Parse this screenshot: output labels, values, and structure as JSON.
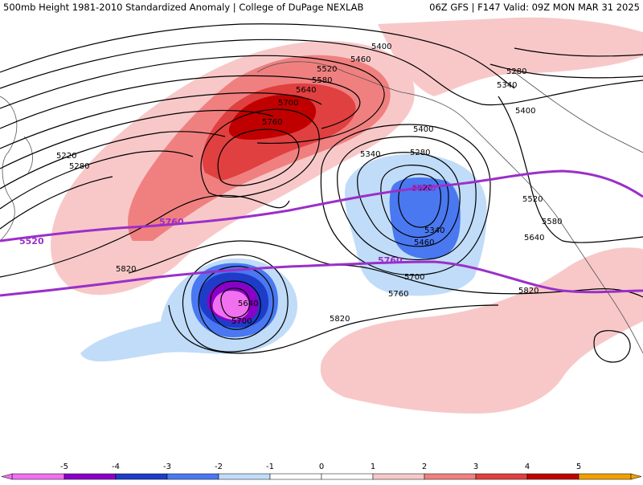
{
  "title": {
    "left": "500mb Height 1981-2010 Standardized Anomaly | College of DuPage NEXLAB",
    "right": "06Z GFS | F147 Valid: 09Z MON MAR 31 2025"
  },
  "colors": {
    "neg5": "#f070f0",
    "neg4": "#8a00c8",
    "neg3": "#1e3cc8",
    "neg2": "#4a78f0",
    "neg1": "#c0dcf8",
    "pos1": "#f8c8c8",
    "pos2": "#f08080",
    "pos3": "#e04040",
    "pos4": "#c00000",
    "pos5": "#f0a000",
    "purple_line": "#9b2fc9",
    "contour": "#000000"
  },
  "contour_labels": [
    "5220",
    "5280",
    "5400",
    "5460",
    "5520",
    "5580",
    "5640",
    "5700",
    "5760",
    "5400",
    "5340",
    "5280",
    "5520",
    "5340",
    "5460",
    "5700",
    "5760",
    "5820",
    "5640",
    "5700",
    "5820",
    "5400",
    "5340",
    "5280",
    "5520",
    "5580",
    "5640",
    "5820"
  ],
  "purple_labels": [
    "5520",
    "5520",
    "5760",
    "5760"
  ],
  "colorbar": {
    "ticks": [
      "-5",
      "-4",
      "-3",
      "-2",
      "-1",
      "0",
      "1",
      "2",
      "3",
      "4",
      "5"
    ]
  }
}
